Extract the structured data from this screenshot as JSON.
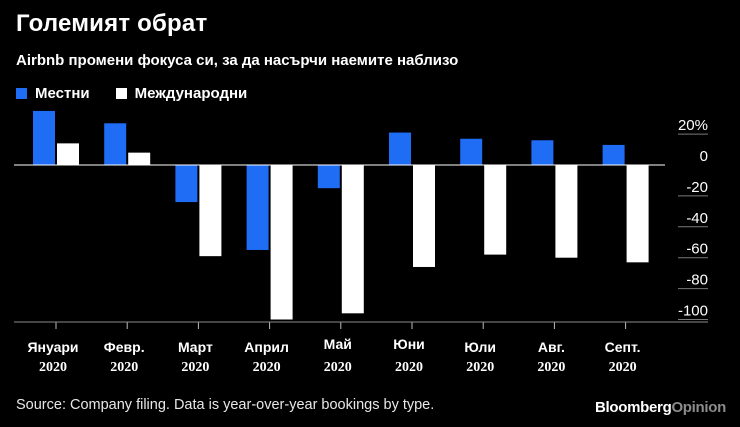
{
  "title": "Големият обрат",
  "subtitle": "Airbnb промени фокуса си, за да насърчи наемите наблизо",
  "legend": [
    {
      "label": "Местни",
      "color": "#1f6cf5"
    },
    {
      "label": "Международни",
      "color": "#ffffff"
    }
  ],
  "chart_data": {
    "type": "bar",
    "categories": [
      {
        "month": "Януари",
        "year": "2020"
      },
      {
        "month": "Февр.",
        "year": "2020"
      },
      {
        "month": "Март",
        "year": "2020"
      },
      {
        "month": "Април",
        "year": "2020"
      },
      {
        "month": "Май",
        "year": "2020"
      },
      {
        "month": "Юни",
        "year": "2020"
      },
      {
        "month": "Юли",
        "year": "2020"
      },
      {
        "month": "Авг.",
        "year": "2020"
      },
      {
        "month": "Септ.",
        "year": "2020"
      }
    ],
    "series": [
      {
        "name": "Местни",
        "color": "#1f6cf5",
        "values": [
          35,
          27,
          -24,
          -55,
          -15,
          21,
          17,
          16,
          13
        ]
      },
      {
        "name": "Международни",
        "color": "#ffffff",
        "values": [
          14,
          8,
          -59,
          -100,
          -96,
          -66,
          -58,
          -60,
          -63
        ]
      }
    ],
    "y_ticks": [
      20,
      0,
      -20,
      -40,
      -60,
      -80,
      -100
    ],
    "y_tick_labels": [
      "20%",
      "0",
      "-20",
      "-40",
      "-60",
      "-80",
      "-100"
    ],
    "ylim": [
      -110,
      38
    ],
    "zero_line": true
  },
  "footer": "Source: Company filing. Data is year-over-year bookings by type.",
  "brand": {
    "part1": "Bloomberg",
    "part2": "Opinion"
  }
}
